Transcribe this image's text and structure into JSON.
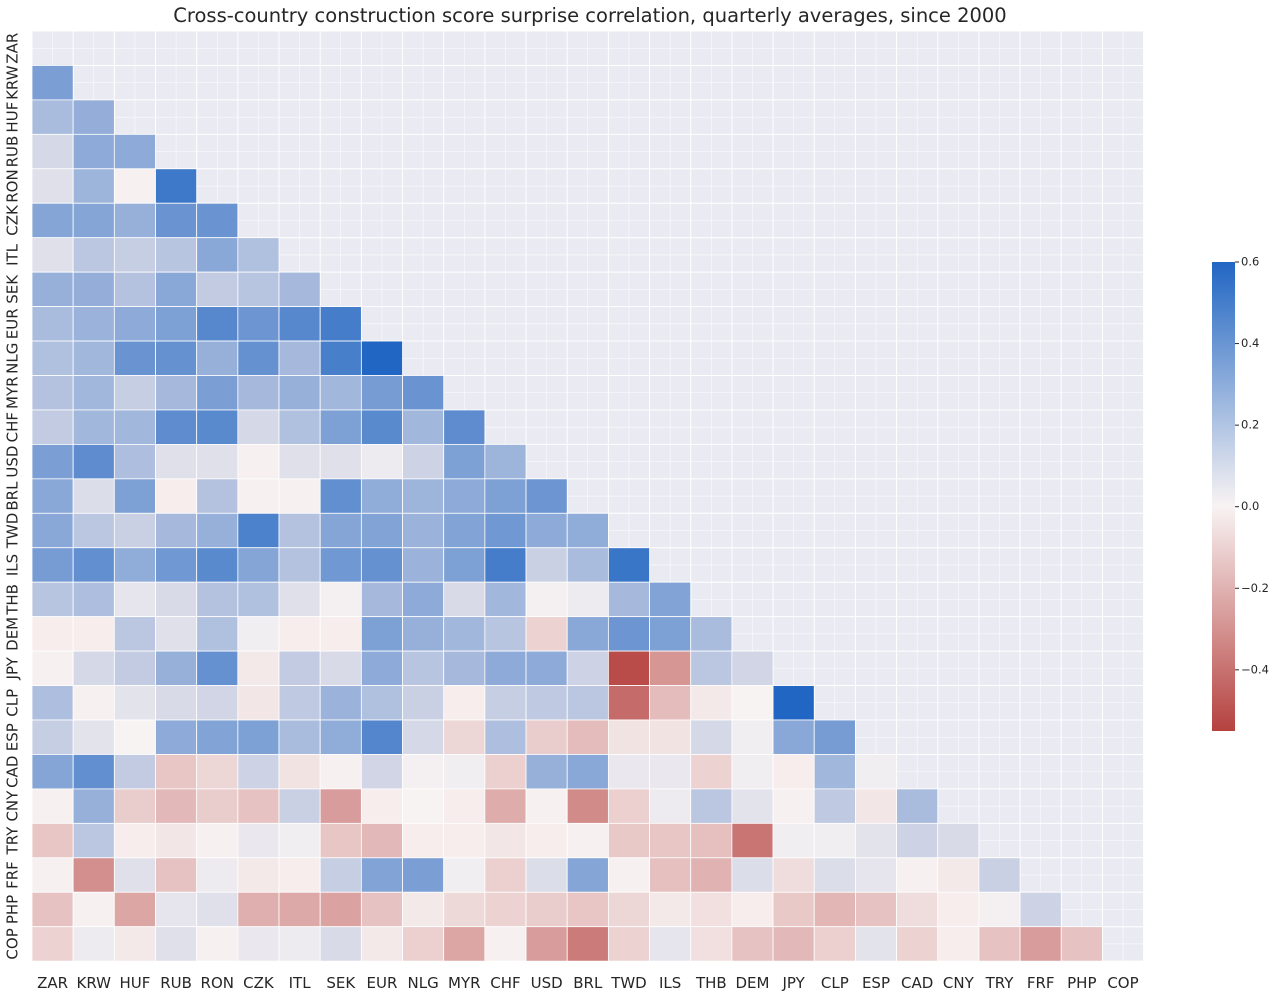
{
  "chart_data": {
    "type": "heatmap",
    "title": "Cross-country construction score surprise correlation, quarterly averages, since 2000",
    "labels": [
      "ZAR",
      "KRW",
      "HUF",
      "RUB",
      "RON",
      "CZK",
      "ITL",
      "SEK",
      "EUR",
      "NLG",
      "MYR",
      "CHF",
      "USD",
      "BRL",
      "TWD",
      "ILS",
      "THB",
      "DEM",
      "JPY",
      "CLP",
      "ESP",
      "CAD",
      "CNY",
      "TRY",
      "FRF",
      "PHP",
      "COP"
    ],
    "mask": "upper triangle including diagonal",
    "grid": true,
    "colormap": "diverging red-white-blue",
    "colors": {
      "negative": "#b5423f",
      "zero": "#f8f3f3",
      "positive": "#2166c3",
      "masked": "#eaeaf2",
      "gridline": "#ffffff"
    },
    "value_range": [
      -0.55,
      0.6
    ],
    "colorbar": {
      "ticks": [
        0.6,
        0.4,
        0.2,
        0.0,
        -0.2,
        -0.4
      ],
      "tick_labels": [
        "0.6",
        "0.4",
        "0.2",
        "0.0",
        "−0.2",
        "−0.4"
      ],
      "position": "right"
    },
    "rows": [
      [],
      [
        0.35
      ],
      [
        0.22,
        0.28
      ],
      [
        0.1,
        0.3,
        0.3
      ],
      [
        0.07,
        0.25,
        -0.01,
        0.52
      ],
      [
        0.32,
        0.32,
        0.27,
        0.4,
        0.4
      ],
      [
        0.07,
        0.17,
        0.14,
        0.18,
        0.31,
        0.2
      ],
      [
        0.27,
        0.28,
        0.19,
        0.31,
        0.15,
        0.18,
        0.23
      ],
      [
        0.22,
        0.26,
        0.3,
        0.34,
        0.45,
        0.39,
        0.45,
        0.5
      ],
      [
        0.2,
        0.24,
        0.4,
        0.41,
        0.27,
        0.41,
        0.23,
        0.49,
        0.61
      ],
      [
        0.19,
        0.24,
        0.14,
        0.23,
        0.35,
        0.23,
        0.27,
        0.24,
        0.36,
        0.4
      ],
      [
        0.15,
        0.24,
        0.24,
        0.43,
        0.44,
        0.1,
        0.2,
        0.34,
        0.44,
        0.24,
        0.43
      ],
      [
        0.35,
        0.43,
        0.21,
        0.07,
        0.07,
        -0.01,
        0.07,
        0.07,
        0.03,
        0.12,
        0.34,
        0.25
      ],
      [
        0.31,
        0.08,
        0.34,
        -0.02,
        0.19,
        -0.01,
        -0.01,
        0.42,
        0.29,
        0.25,
        0.3,
        0.34,
        0.39
      ],
      [
        0.31,
        0.17,
        0.13,
        0.23,
        0.27,
        0.48,
        0.19,
        0.32,
        0.33,
        0.26,
        0.33,
        0.38,
        0.3,
        0.29
      ],
      [
        0.36,
        0.42,
        0.29,
        0.38,
        0.44,
        0.32,
        0.19,
        0.38,
        0.41,
        0.26,
        0.34,
        0.5,
        0.13,
        0.22,
        0.53
      ],
      [
        0.18,
        0.21,
        0.05,
        0.09,
        0.19,
        0.2,
        0.07,
        0.01,
        0.23,
        0.3,
        0.09,
        0.24,
        0.01,
        0.03,
        0.23,
        0.33
      ],
      [
        -0.02,
        -0.02,
        0.17,
        0.07,
        0.2,
        0.02,
        -0.02,
        -0.02,
        0.34,
        0.27,
        0.24,
        0.18,
        -0.1,
        0.31,
        0.39,
        0.34,
        0.22
      ],
      [
        -0.01,
        0.1,
        0.15,
        0.27,
        0.41,
        -0.03,
        0.15,
        0.09,
        0.3,
        0.18,
        0.23,
        0.3,
        0.3,
        0.12,
        -0.52,
        -0.29,
        0.17,
        0.11
      ],
      [
        0.21,
        -0.01,
        0.06,
        0.09,
        0.11,
        -0.04,
        0.16,
        0.26,
        0.2,
        0.13,
        -0.02,
        0.14,
        0.16,
        0.17,
        -0.42,
        -0.17,
        -0.03,
        0.0,
        0.61
      ],
      [
        0.14,
        0.06,
        0.0,
        0.3,
        0.33,
        0.34,
        0.22,
        0.29,
        0.46,
        0.1,
        -0.09,
        0.21,
        -0.12,
        -0.17,
        -0.05,
        -0.05,
        0.1,
        0.02,
        0.31,
        0.36
      ],
      [
        0.32,
        0.42,
        0.15,
        -0.14,
        -0.09,
        0.12,
        -0.05,
        -0.01,
        0.11,
        0.01,
        0.02,
        -0.11,
        0.27,
        0.31,
        0.04,
        0.04,
        -0.1,
        0.02,
        -0.02,
        0.24,
        0.02
      ],
      [
        -0.01,
        0.27,
        -0.12,
        -0.18,
        -0.12,
        -0.15,
        0.13,
        -0.27,
        -0.02,
        0.0,
        -0.02,
        -0.22,
        -0.01,
        -0.32,
        -0.11,
        0.03,
        0.17,
        0.06,
        -0.01,
        0.16,
        -0.04,
        0.22
      ],
      [
        -0.14,
        0.17,
        -0.02,
        -0.04,
        -0.01,
        0.04,
        0.02,
        -0.14,
        -0.18,
        -0.02,
        -0.02,
        -0.04,
        -0.02,
        -0.01,
        -0.13,
        -0.14,
        -0.16,
        -0.39,
        0.02,
        0.02,
        0.06,
        0.12,
        0.09
      ],
      [
        -0.01,
        -0.31,
        0.07,
        -0.15,
        0.03,
        -0.03,
        -0.02,
        0.14,
        0.33,
        0.35,
        0.02,
        -0.11,
        0.08,
        0.32,
        -0.01,
        -0.16,
        -0.2,
        0.08,
        -0.07,
        0.08,
        0.05,
        -0.01,
        -0.03,
        0.13
      ],
      [
        -0.15,
        -0.01,
        -0.24,
        0.05,
        0.07,
        -0.21,
        -0.23,
        -0.25,
        -0.15,
        -0.03,
        -0.08,
        -0.1,
        -0.12,
        -0.14,
        -0.09,
        -0.03,
        -0.06,
        -0.02,
        -0.13,
        -0.19,
        -0.15,
        -0.07,
        -0.02,
        0.01,
        0.12,
        null
      ],
      [
        -0.1,
        0.03,
        -0.03,
        0.07,
        -0.01,
        0.04,
        0.03,
        0.09,
        -0.03,
        -0.11,
        -0.24,
        -0.01,
        -0.27,
        -0.37,
        -0.1,
        0.05,
        -0.06,
        -0.15,
        -0.18,
        -0.11,
        0.06,
        -0.1,
        -0.02,
        -0.15,
        -0.27,
        -0.15
      ]
    ]
  }
}
